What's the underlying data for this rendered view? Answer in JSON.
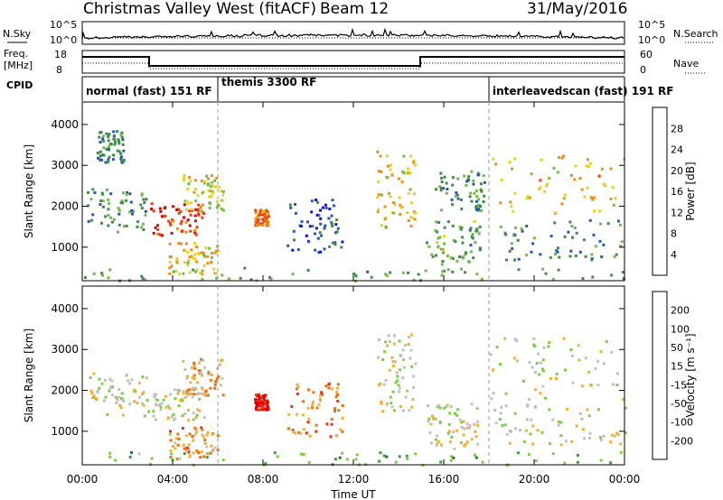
{
  "header": {
    "station": "Christmas Valley West (fitACF)",
    "beam": "Beam 12",
    "date": "31/May/2016"
  },
  "strip": {
    "nsky_label": "N.Sky",
    "nsky_ticks": [
      "10^5",
      "10^0"
    ],
    "nsearch_label": "N.Search",
    "nsearch_ticks": [
      "10^5",
      "10^0"
    ],
    "freq_label_1": "Freq.",
    "freq_label_2": "[MHz]",
    "freq_ticks": [
      "18",
      "8"
    ],
    "nave_label": "Nave",
    "nave_ticks": [
      "60",
      "0"
    ],
    "cpid_label": "CPID",
    "cpid_segments": [
      {
        "label": "normal (fast) 151 RF",
        "start": "00:00"
      },
      {
        "label": "themis 3300 RF",
        "start": "06:00"
      },
      {
        "label": "interleavedscan (fast) 191 RF",
        "start": "18:00"
      }
    ]
  },
  "chart_data": [
    {
      "type": "heatmap",
      "name": "power",
      "ylabel": "Slant Range [km]",
      "yticks": [
        "4000",
        "3000",
        "2000",
        "1000"
      ],
      "ylim": [
        180,
        4550
      ],
      "colorbar_label": "Power [dB]",
      "colorbar_ticks": [
        "28",
        "24",
        "20",
        "16",
        "12",
        "8",
        "4"
      ],
      "colors": [
        "#1010e0",
        "#2a55b0",
        "#3f8c4a",
        "#6fbc45",
        "#e8d020",
        "#ee8c18",
        "#ee3c10",
        "#e00000"
      ],
      "blobs": [
        {
          "t0": 0.2,
          "t1": 2.9,
          "r0": 1400,
          "r1": 2450,
          "level": 0.33
        },
        {
          "t0": 0.6,
          "t1": 1.8,
          "r0": 3100,
          "r1": 3900,
          "level": 0.28
        },
        {
          "t0": 3.0,
          "t1": 5.4,
          "r0": 1300,
          "r1": 2100,
          "level": 0.86
        },
        {
          "t0": 4.4,
          "t1": 6.2,
          "r0": 1900,
          "r1": 2800,
          "level": 0.55
        },
        {
          "t0": 3.8,
          "t1": 6.0,
          "r0": 350,
          "r1": 1150,
          "level": 0.62
        },
        {
          "t0": 7.6,
          "t1": 8.2,
          "r0": 1550,
          "r1": 1950,
          "level": 0.74
        },
        {
          "t0": 9.0,
          "t1": 11.5,
          "r0": 900,
          "r1": 2200,
          "level": 0.18
        },
        {
          "t0": 13.0,
          "t1": 14.7,
          "r0": 1500,
          "r1": 3400,
          "level": 0.6
        },
        {
          "t0": 15.2,
          "t1": 17.6,
          "r0": 600,
          "r1": 1700,
          "level": 0.38
        },
        {
          "t0": 15.6,
          "t1": 17.8,
          "r0": 1900,
          "r1": 2900,
          "level": 0.3
        },
        {
          "t0": 18.0,
          "t1": 24.0,
          "r0": 1800,
          "r1": 3300,
          "level": 0.62
        },
        {
          "t0": 18.2,
          "t1": 24.0,
          "r0": 700,
          "r1": 1700,
          "level": 0.3
        },
        {
          "t0": 0.0,
          "t1": 24.0,
          "r0": 200,
          "r1": 520,
          "level": 0.36
        }
      ]
    },
    {
      "type": "heatmap",
      "name": "velocity",
      "ylabel": "Slant Range [km]",
      "yticks": [
        "4000",
        "3000",
        "2000",
        "1000"
      ],
      "ylim": [
        180,
        4550
      ],
      "colorbar_label": "Velocity [m s⁻¹]",
      "colorbar_ticks": [
        "200",
        "100",
        "50",
        "15",
        "-15",
        "-50",
        "-100",
        "-200"
      ],
      "colors": [
        "#2030b0",
        "#2a6e3a",
        "#3aa03a",
        "#77d040",
        "#c0c0c0",
        "#f0b030",
        "#f07010",
        "#ee3010",
        "#e00000"
      ],
      "blobs": [
        {
          "t0": 0.2,
          "t1": 2.9,
          "r0": 1400,
          "r1": 2450,
          "level": 0.5
        },
        {
          "t0": 3.0,
          "t1": 5.4,
          "r0": 1300,
          "r1": 2100,
          "level": 0.5
        },
        {
          "t0": 4.4,
          "t1": 6.2,
          "r0": 1900,
          "r1": 2800,
          "level": 0.62
        },
        {
          "t0": 3.8,
          "t1": 6.0,
          "r0": 350,
          "r1": 1150,
          "level": 0.66
        },
        {
          "t0": 7.6,
          "t1": 8.2,
          "r0": 1550,
          "r1": 1950,
          "level": 0.95
        },
        {
          "t0": 9.0,
          "t1": 11.5,
          "r0": 900,
          "r1": 2200,
          "level": 0.7
        },
        {
          "t0": 13.0,
          "t1": 14.7,
          "r0": 1500,
          "r1": 3400,
          "level": 0.5
        },
        {
          "t0": 15.2,
          "t1": 17.6,
          "r0": 600,
          "r1": 1700,
          "level": 0.5
        },
        {
          "t0": 18.0,
          "t1": 24.0,
          "r0": 1800,
          "r1": 3300,
          "level": 0.5
        },
        {
          "t0": 18.2,
          "t1": 24.0,
          "r0": 700,
          "r1": 1700,
          "level": 0.5
        },
        {
          "t0": 0.0,
          "t1": 24.0,
          "r0": 200,
          "r1": 520,
          "level": 0.32
        }
      ]
    }
  ],
  "xaxis": {
    "label": "Time UT",
    "ticks": [
      "00:00",
      "04:00",
      "08:00",
      "12:00",
      "16:00",
      "20:00",
      "00:00"
    ],
    "range_hours": [
      0,
      24
    ]
  }
}
